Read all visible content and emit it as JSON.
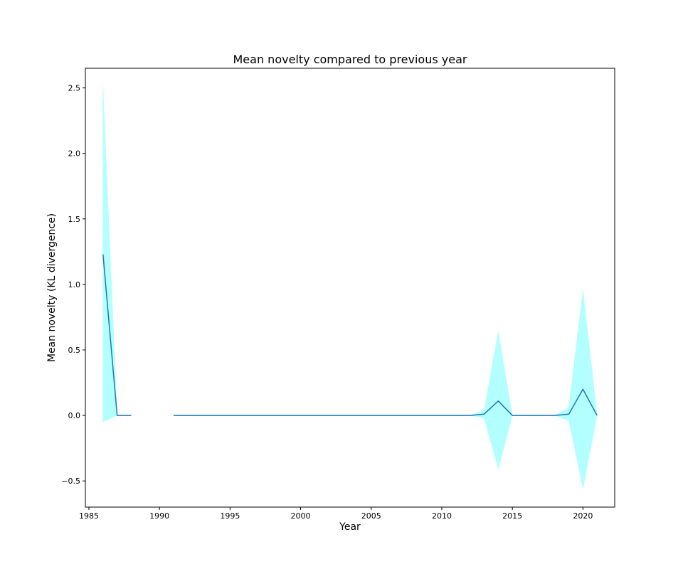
{
  "chart_data": {
    "type": "line",
    "title": "Mean novelty compared to previous year",
    "xlabel": "Year",
    "ylabel": "Mean novelty (KL divergence)",
    "xlim": [
      1984.75,
      2022.25
    ],
    "ylim": [
      -0.7,
      2.65
    ],
    "xticks": [
      1985,
      1990,
      1995,
      2000,
      2005,
      2010,
      2015,
      2020
    ],
    "yticks": [
      -0.5,
      0.0,
      0.5,
      1.0,
      1.5,
      2.0,
      2.5
    ],
    "xtick_labels": [
      "1985",
      "1990",
      "1995",
      "2000",
      "2005",
      "2010",
      "2015",
      "2020"
    ],
    "ytick_labels": [
      "−0.5",
      "0.0",
      "0.5",
      "1.0",
      "1.5",
      "2.0",
      "2.5"
    ],
    "grid": false,
    "colors": {
      "line": "#1f77b4",
      "band": "#b3ffff"
    },
    "series": [
      {
        "x": [
          1986,
          1987,
          1988,
          1989,
          1990,
          1991,
          1992,
          1993,
          1994,
          1995,
          1996,
          1997,
          1998,
          1999,
          2000,
          2001,
          2002,
          2003,
          2004,
          2005,
          2006,
          2007,
          2008,
          2009,
          2010,
          2011,
          2012,
          2013,
          2014,
          2015,
          2016,
          2017,
          2018,
          2019,
          2020,
          2021
        ],
        "mean": [
          1.23,
          0.0,
          0.0,
          null,
          null,
          0.0,
          0.0,
          0.0,
          0.0,
          0.0,
          0.0,
          0.0,
          0.0,
          0.0,
          0.0,
          0.0,
          0.0,
          0.0,
          0.0,
          0.0,
          0.0,
          0.0,
          0.0,
          0.0,
          0.0,
          0.0,
          0.0,
          0.01,
          0.11,
          0.0,
          0.0,
          0.0,
          0.0,
          0.01,
          0.2,
          0.0
        ],
        "lower": [
          -0.05,
          0.0,
          0.0,
          null,
          null,
          0.0,
          0.0,
          0.0,
          0.0,
          0.0,
          0.0,
          0.0,
          0.0,
          0.0,
          0.0,
          0.0,
          0.0,
          0.0,
          0.0,
          0.0,
          0.0,
          0.0,
          0.0,
          0.0,
          0.0,
          0.0,
          0.0,
          -0.02,
          -0.41,
          0.0,
          0.0,
          0.0,
          0.0,
          -0.04,
          -0.56,
          0.0
        ],
        "upper": [
          2.51,
          0.0,
          0.0,
          null,
          null,
          0.0,
          0.0,
          0.0,
          0.0,
          0.0,
          0.0,
          0.0,
          0.0,
          0.0,
          0.0,
          0.0,
          0.0,
          0.0,
          0.0,
          0.0,
          0.0,
          0.0,
          0.0,
          0.0,
          0.0,
          0.0,
          0.0,
          0.04,
          0.64,
          0.0,
          0.0,
          0.0,
          0.0,
          0.06,
          0.96,
          0.0
        ]
      }
    ]
  }
}
